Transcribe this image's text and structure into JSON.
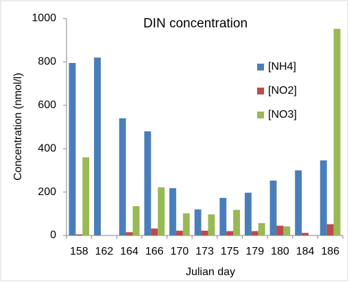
{
  "chart_data": {
    "type": "bar",
    "title": "DIN concentration",
    "xlabel": "Julian day",
    "ylabel": "Concentration (nmol/l)",
    "categories": [
      "158",
      "162",
      "164",
      "166",
      "170",
      "173",
      "175",
      "179",
      "180",
      "184",
      "186"
    ],
    "series": [
      {
        "name": "[NH4]",
        "color": "#4a7ebb",
        "values": [
          795,
          820,
          540,
          480,
          218,
          120,
          173,
          197,
          253,
          300,
          346
        ]
      },
      {
        "name": "[NO2]",
        "color": "#be4b48",
        "values": [
          5,
          0,
          15,
          32,
          22,
          22,
          20,
          20,
          45,
          12,
          52
        ]
      },
      {
        "name": "[NO3]",
        "color": "#98b954",
        "values": [
          360,
          0,
          135,
          222,
          102,
          97,
          118,
          57,
          42,
          0,
          952
        ]
      }
    ],
    "ylim": [
      0,
      1000
    ],
    "yticks": [
      0,
      200,
      400,
      600,
      800,
      1000
    ],
    "grid": false,
    "legend": "upper right"
  }
}
